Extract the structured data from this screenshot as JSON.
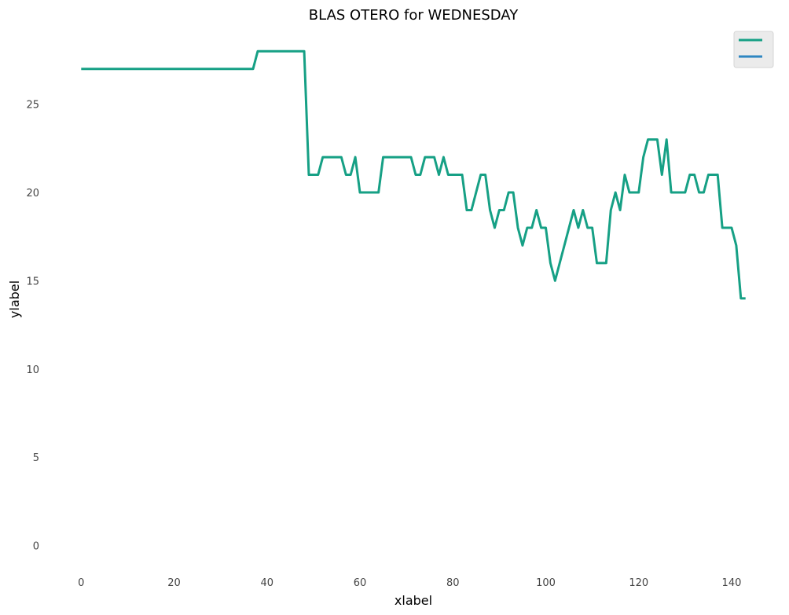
{
  "chart_data": {
    "type": "line",
    "title": "BLAS OTERO for WEDNESDAY",
    "xlabel": "xlabel",
    "ylabel": "ylabel",
    "xlim": [
      -8,
      151
    ],
    "ylim": [
      -1.4,
      29.3
    ],
    "xticks": [
      0,
      20,
      40,
      60,
      80,
      100,
      120,
      140
    ],
    "yticks": [
      0,
      5,
      10,
      15,
      20,
      25
    ],
    "grid": false,
    "legend": "top-right",
    "series": [
      {
        "color": "#16a085",
        "x": [
          0,
          1,
          2,
          3,
          4,
          5,
          6,
          7,
          8,
          9,
          10,
          11,
          12,
          13,
          14,
          15,
          16,
          17,
          18,
          19,
          20,
          21,
          22,
          23,
          24,
          25,
          26,
          27,
          28,
          29,
          30,
          31,
          32,
          33,
          34,
          35,
          36,
          37,
          38,
          39,
          40,
          41,
          42,
          43,
          44,
          45,
          46,
          47,
          48,
          49,
          50,
          51,
          52,
          53,
          54,
          55,
          56,
          57,
          58,
          59,
          60,
          61,
          62,
          63,
          64,
          65,
          66,
          67,
          68,
          69,
          70,
          71,
          72,
          73,
          74,
          75,
          76,
          77,
          78,
          79,
          80,
          81,
          82,
          83,
          84,
          85,
          86,
          87,
          88,
          89,
          90,
          91,
          92,
          93,
          94,
          95,
          96,
          97,
          98,
          99,
          100,
          101,
          102,
          103,
          104,
          105,
          106,
          107,
          108,
          109,
          110,
          111,
          112,
          113,
          114,
          115,
          116,
          117,
          118,
          119,
          120,
          121,
          122,
          123,
          124,
          125,
          126,
          127,
          128,
          129,
          130,
          131,
          132,
          133,
          134,
          135,
          136,
          137,
          138,
          139,
          140,
          141,
          142,
          143
        ],
        "y": [
          27,
          27,
          27,
          27,
          27,
          27,
          27,
          27,
          27,
          27,
          27,
          27,
          27,
          27,
          27,
          27,
          27,
          27,
          27,
          27,
          27,
          27,
          27,
          27,
          27,
          27,
          27,
          27,
          27,
          27,
          27,
          27,
          27,
          27,
          27,
          27,
          27,
          27,
          28,
          28,
          28,
          28,
          28,
          28,
          28,
          28,
          28,
          28,
          28,
          21,
          21,
          21,
          22,
          22,
          22,
          22,
          22,
          21,
          21,
          22,
          20,
          20,
          20,
          20,
          20,
          22,
          22,
          22,
          22,
          22,
          22,
          22,
          21,
          21,
          22,
          22,
          22,
          21,
          22,
          21,
          21,
          21,
          21,
          19,
          19,
          20,
          21,
          21,
          19,
          18,
          19,
          19,
          20,
          20,
          18,
          17,
          18,
          18,
          19,
          18,
          18,
          16,
          15,
          16,
          17,
          18,
          19,
          18,
          19,
          18,
          18,
          16,
          16,
          16,
          19,
          20,
          19,
          21,
          20,
          20,
          20,
          22,
          23,
          23,
          23,
          21,
          23,
          20,
          20,
          20,
          20,
          21,
          21,
          20,
          20,
          21,
          21,
          21,
          18,
          18,
          18,
          17,
          14,
          14
        ]
      },
      {
        "color": "#2e86c1",
        "x": [],
        "y": []
      }
    ]
  }
}
